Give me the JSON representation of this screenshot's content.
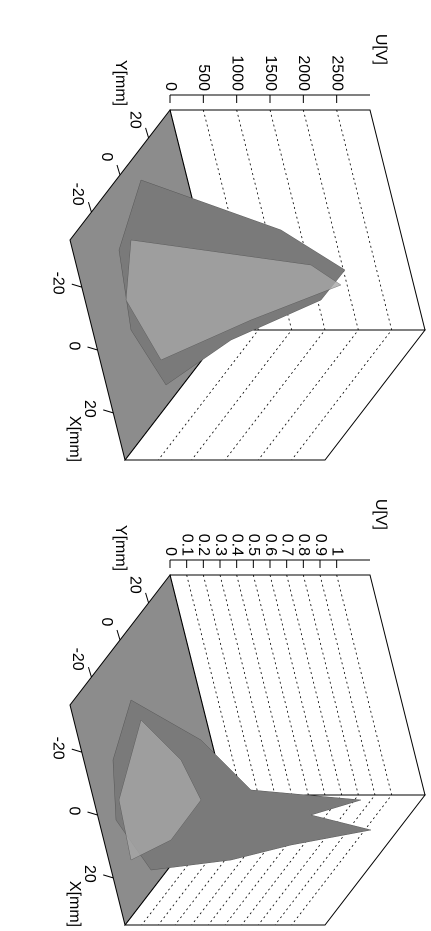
{
  "chart_data": [
    {
      "type": "surface",
      "zlabel": "U[V]",
      "xlabel": "X[mm]",
      "ylabel": "Y[mm]",
      "zlim": [
        0,
        3000
      ],
      "zticks": [
        0,
        500,
        1000,
        1500,
        2000,
        2500
      ],
      "xlim": [
        -35,
        35
      ],
      "xticks": [
        -20,
        0,
        20
      ],
      "ylim": [
        35,
        -35
      ],
      "yticks": [
        20,
        0,
        -20
      ],
      "grid": true,
      "color": "#7a7a7a"
    },
    {
      "type": "surface",
      "zlabel": "U[V]",
      "xlabel": "X[mm]",
      "ylabel": "Y[mm]",
      "zlim": [
        0,
        1.2
      ],
      "zticks": [
        0,
        0.1,
        0.2,
        0.3,
        0.4,
        0.5,
        0.6,
        0.7,
        0.8,
        0.9,
        1
      ],
      "xlim": [
        -35,
        35
      ],
      "xticks": [
        -20,
        0,
        20
      ],
      "ylim": [
        35,
        -35
      ],
      "yticks": [
        20,
        0,
        -20
      ],
      "grid": true,
      "color": "#7a7a7a"
    }
  ]
}
